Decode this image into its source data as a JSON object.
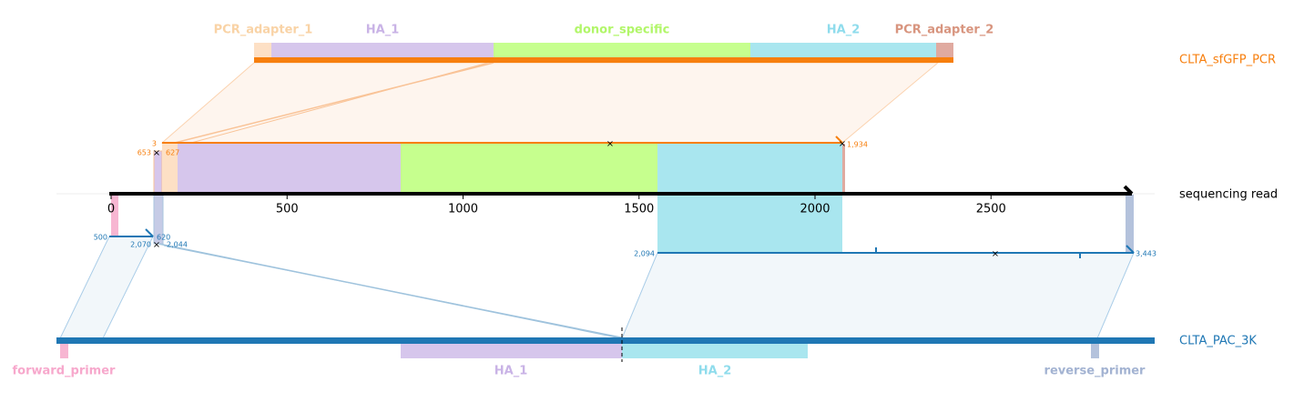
{
  "reference": {
    "name": "CLTA_sfGFP_PCR",
    "features": [
      "PCR_adapter_1",
      "HA_1",
      "donor_specific",
      "HA_2",
      "PCR_adapter_2"
    ]
  },
  "read": {
    "name": "sequencing read",
    "axis_ticks": [
      0,
      500,
      1000,
      1500,
      2000,
      2500
    ]
  },
  "target": {
    "name": "CLTA_PAC_3K",
    "features": [
      "forward_primer",
      "HA_1",
      "HA_2",
      "reverse_primer"
    ]
  },
  "alignments": [
    {
      "labels": [
        "3",
        "653",
        "627",
        "1,934"
      ]
    },
    {
      "labels": [
        "500",
        "620",
        "2,070",
        "2,044"
      ]
    },
    {
      "labels": [
        "2,094",
        "3,443"
      ]
    }
  ]
}
